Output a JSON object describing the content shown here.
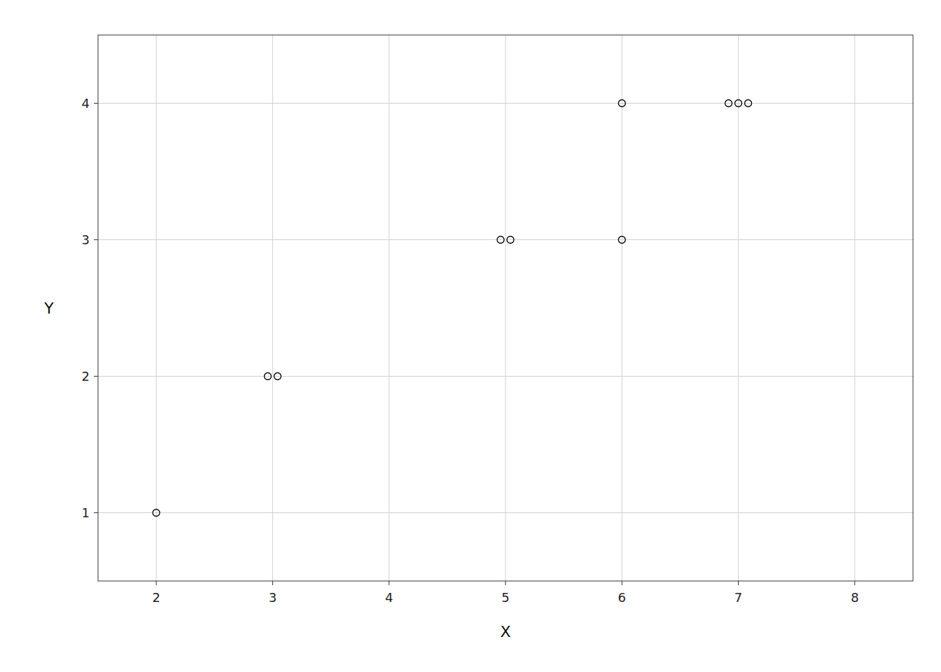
{
  "chart_data": {
    "type": "scatter",
    "xlabel": "X",
    "ylabel": "Y",
    "x": [
      2,
      3,
      3,
      5,
      5,
      6,
      6,
      7,
      7,
      7
    ],
    "values": [
      1,
      2,
      2,
      3,
      3,
      3,
      4,
      4,
      4,
      4
    ],
    "xlim": [
      1.5,
      8.5
    ],
    "ylim": [
      0.5,
      4.5
    ],
    "xticks": [
      2,
      3,
      4,
      5,
      6,
      7,
      8
    ],
    "yticks": [
      1,
      2,
      3,
      4
    ],
    "grid": true,
    "marker": "open-circle",
    "color": "black"
  }
}
